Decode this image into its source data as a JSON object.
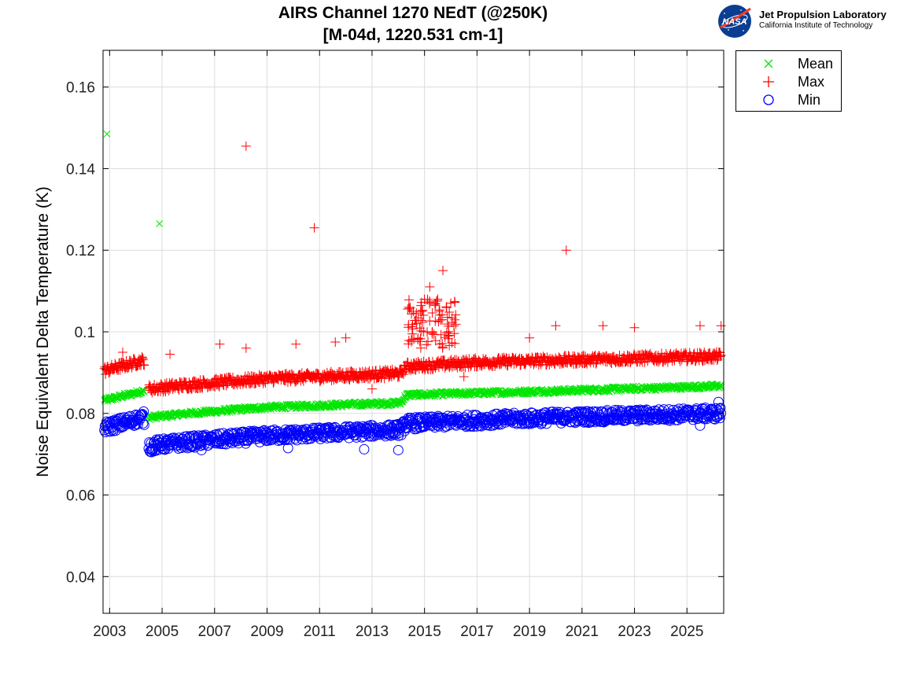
{
  "chart_data": {
    "type": "scatter",
    "title": "AIRS Channel 1270 NEdT (@250K)",
    "subtitle": "[M-04d, 1220.531 cm-1]",
    "ylabel": "Noise Equivalent Delta Temperature (K)",
    "xlabel": "",
    "xlim": [
      2002.75,
      2026.4
    ],
    "ylim": [
      0.031,
      0.169
    ],
    "x_ticks": [
      "2003",
      "2005",
      "2007",
      "2009",
      "2011",
      "2013",
      "2015",
      "2017",
      "2019",
      "2021",
      "2023",
      "2025"
    ],
    "y_ticks": [
      "0.04",
      "0.06",
      "0.08",
      "0.1",
      "0.12",
      "0.14",
      "0.16"
    ],
    "grid": true,
    "legend_position": "outside-top-right",
    "series": [
      {
        "name": "Mean",
        "marker": "x",
        "color": "#00e600",
        "trend": [
          [
            2002.8,
            0.0832
          ],
          [
            2004.3,
            0.0855
          ],
          [
            2004.5,
            0.079
          ],
          [
            2006.0,
            0.08
          ],
          [
            2009.0,
            0.0815
          ],
          [
            2014.1,
            0.0826
          ],
          [
            2014.3,
            0.0845
          ],
          [
            2017.0,
            0.085
          ],
          [
            2020.0,
            0.0855
          ],
          [
            2026.3,
            0.0867
          ]
        ],
        "outliers": [
          [
            2002.9,
            0.1485
          ],
          [
            2004.9,
            0.1265
          ]
        ]
      },
      {
        "name": "Max",
        "marker": "+",
        "color": "#ff0000",
        "trend": [
          [
            2002.8,
            0.0905
          ],
          [
            2004.3,
            0.093
          ],
          [
            2004.5,
            0.086
          ],
          [
            2006.0,
            0.087
          ],
          [
            2009.0,
            0.0885
          ],
          [
            2014.1,
            0.0898
          ],
          [
            2014.3,
            0.0915
          ],
          [
            2017.0,
            0.0925
          ],
          [
            2020.0,
            0.093
          ],
          [
            2026.3,
            0.094
          ]
        ],
        "outliers": [
          [
            2008.2,
            0.1455
          ],
          [
            2010.8,
            0.1255
          ],
          [
            2020.4,
            0.12
          ],
          [
            2015.7,
            0.115
          ],
          [
            2015.2,
            0.111
          ],
          [
            2014.4,
            0.106
          ],
          [
            2014.9,
            0.105
          ],
          [
            2015.5,
            0.108
          ],
          [
            2016.0,
            0.107
          ],
          [
            2014.7,
            0.102
          ],
          [
            2015.3,
            0.1
          ],
          [
            2015.9,
            0.099
          ],
          [
            2014.5,
            0.098
          ],
          [
            2003.5,
            0.095
          ],
          [
            2005.3,
            0.0945
          ],
          [
            2007.2,
            0.097
          ],
          [
            2008.2,
            0.096
          ],
          [
            2010.1,
            0.097
          ],
          [
            2011.6,
            0.0975
          ],
          [
            2012.0,
            0.0985
          ],
          [
            2019.0,
            0.0985
          ],
          [
            2020.0,
            0.1015
          ],
          [
            2021.8,
            0.1015
          ],
          [
            2023.0,
            0.101
          ],
          [
            2025.5,
            0.1015
          ],
          [
            2026.3,
            0.1015
          ],
          [
            2013.0,
            0.086
          ],
          [
            2016.5,
            0.089
          ]
        ]
      },
      {
        "name": "Min",
        "marker": "o",
        "color": "#0000ff",
        "trend": [
          [
            2002.8,
            0.0765
          ],
          [
            2004.3,
            0.079
          ],
          [
            2004.5,
            0.072
          ],
          [
            2006.0,
            0.073
          ],
          [
            2009.0,
            0.0745
          ],
          [
            2014.1,
            0.076
          ],
          [
            2014.3,
            0.0775
          ],
          [
            2017.0,
            0.0783
          ],
          [
            2020.0,
            0.079
          ],
          [
            2026.3,
            0.08
          ]
        ],
        "outliers": [
          [
            2012.7,
            0.0712
          ],
          [
            2014.0,
            0.071
          ],
          [
            2004.6,
            0.0705
          ],
          [
            2006.5,
            0.071
          ],
          [
            2009.8,
            0.0715
          ],
          [
            2026.2,
            0.0828
          ],
          [
            2025.5,
            0.077
          ]
        ]
      }
    ]
  },
  "logo": {
    "badge_text": "NASA",
    "name": "Jet Propulsion Laboratory",
    "subtitle": "California Institute of Technology"
  }
}
